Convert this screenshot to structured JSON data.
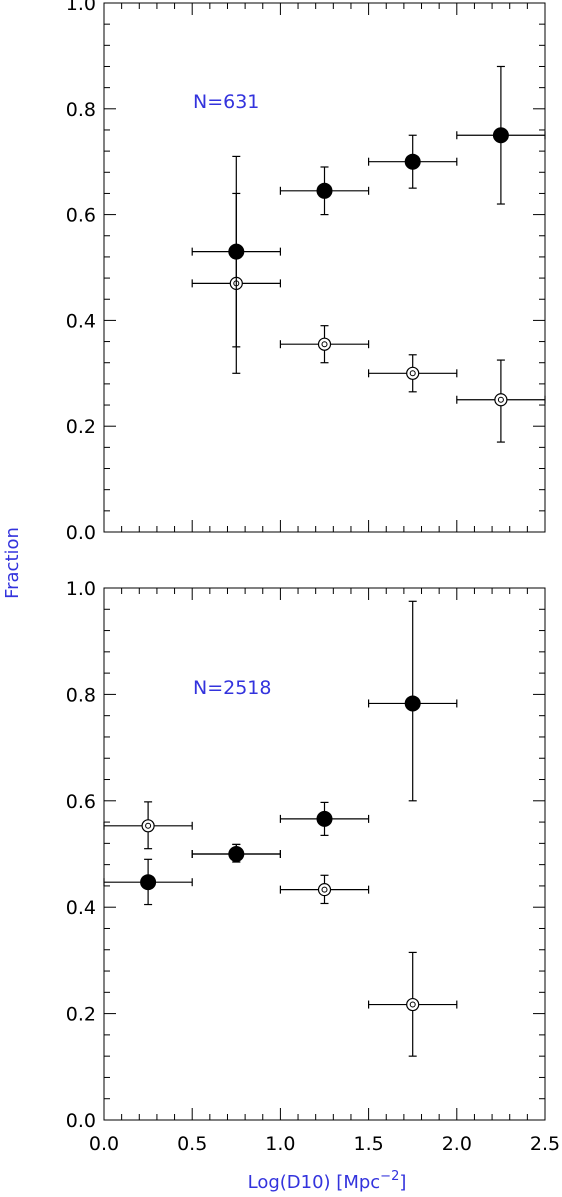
{
  "colors": {
    "axis": "#000000",
    "label": "#3333dd",
    "background": "#ffffff"
  },
  "y_label": "Fraction",
  "x_label": "Log(D10) [Mpc",
  "x_label_exp": "−2",
  "x_label_close": "]",
  "x_tick_labels": [
    "0.0",
    "0.5",
    "1.0",
    "1.5",
    "2.0",
    "2.5"
  ],
  "y_tick_labels": [
    "0.0",
    "0.2",
    "0.4",
    "0.6",
    "0.8",
    "1.0"
  ],
  "chart_data": [
    {
      "type": "scatter",
      "annotation": "N=631",
      "xlim": [
        0.0,
        2.5
      ],
      "ylim": [
        0.0,
        1.0
      ],
      "series": [
        {
          "marker": "filled-circle",
          "points": [
            {
              "x": 0.75,
              "y": 0.53,
              "xerr": 0.25,
              "ylo": 0.35,
              "yhi": 0.71
            },
            {
              "x": 1.25,
              "y": 0.645,
              "xerr": 0.25,
              "ylo": 0.6,
              "yhi": 0.69
            },
            {
              "x": 1.75,
              "y": 0.7,
              "xerr": 0.25,
              "ylo": 0.65,
              "yhi": 0.75
            },
            {
              "x": 2.25,
              "y": 0.75,
              "xerr": 0.25,
              "ylo": 0.62,
              "yhi": 0.88
            }
          ]
        },
        {
          "marker": "open-circle",
          "points": [
            {
              "x": 0.75,
              "y": 0.47,
              "xerr": 0.25,
              "ylo": 0.3,
              "yhi": 0.64
            },
            {
              "x": 1.25,
              "y": 0.355,
              "xerr": 0.25,
              "ylo": 0.32,
              "yhi": 0.39
            },
            {
              "x": 1.75,
              "y": 0.3,
              "xerr": 0.25,
              "ylo": 0.265,
              "yhi": 0.335
            },
            {
              "x": 2.25,
              "y": 0.25,
              "xerr": 0.25,
              "ylo": 0.17,
              "yhi": 0.325
            }
          ]
        }
      ]
    },
    {
      "type": "scatter",
      "annotation": "N=2518",
      "xlim": [
        0.0,
        2.5
      ],
      "ylim": [
        0.0,
        1.0
      ],
      "series": [
        {
          "marker": "filled-circle",
          "points": [
            {
              "x": 0.25,
              "y": 0.447,
              "xerr": 0.25,
              "ylo": 0.405,
              "yhi": 0.49
            },
            {
              "x": 0.75,
              "y": 0.5,
              "xerr": 0.25,
              "ylo": 0.485,
              "yhi": 0.518
            },
            {
              "x": 1.25,
              "y": 0.566,
              "xerr": 0.25,
              "ylo": 0.535,
              "yhi": 0.597
            },
            {
              "x": 1.75,
              "y": 0.783,
              "xerr": 0.25,
              "ylo": 0.6,
              "yhi": 0.975
            }
          ]
        },
        {
          "marker": "open-circle",
          "points": [
            {
              "x": 0.25,
              "y": 0.553,
              "xerr": 0.25,
              "ylo": 0.51,
              "yhi": 0.598
            },
            {
              "x": 0.75,
              "y": 0.5,
              "xerr": 0.25,
              "ylo": 0.485,
              "yhi": 0.518
            },
            {
              "x": 1.25,
              "y": 0.433,
              "xerr": 0.25,
              "ylo": 0.407,
              "yhi": 0.46
            },
            {
              "x": 1.75,
              "y": 0.217,
              "xerr": 0.25,
              "ylo": 0.12,
              "yhi": 0.315
            }
          ]
        }
      ]
    }
  ]
}
